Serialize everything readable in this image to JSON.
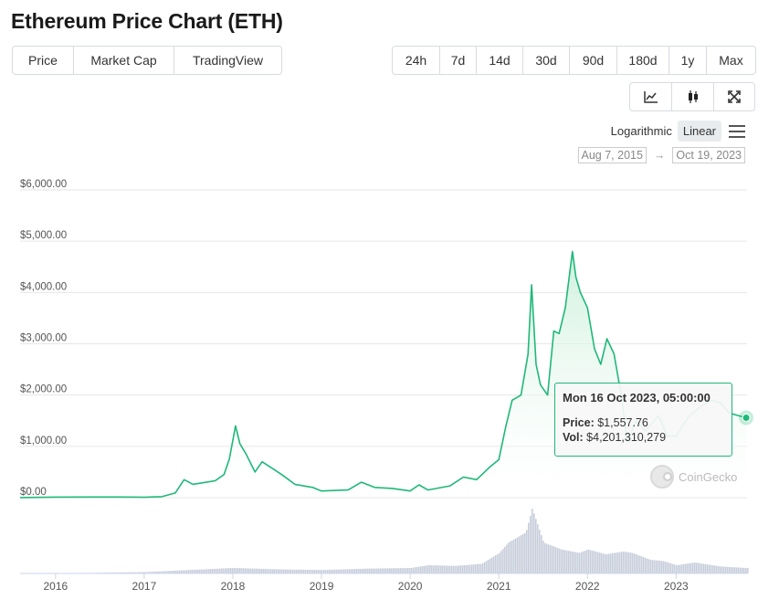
{
  "page": {
    "title": "Ethereum Price Chart (ETH)"
  },
  "view_tabs": [
    {
      "label": "Price",
      "active": true
    },
    {
      "label": "Market Cap",
      "active": false
    },
    {
      "label": "TradingView",
      "active": false
    }
  ],
  "range_tabs": [
    {
      "label": "24h",
      "active": false
    },
    {
      "label": "7d",
      "active": false
    },
    {
      "label": "14d",
      "active": false
    },
    {
      "label": "30d",
      "active": false
    },
    {
      "label": "90d",
      "active": false
    },
    {
      "label": "180d",
      "active": false
    },
    {
      "label": "1y",
      "active": false
    },
    {
      "label": "Max",
      "active": true
    }
  ],
  "chart_types": [
    {
      "icon": "line-chart-icon",
      "active": true
    },
    {
      "icon": "candlestick-icon",
      "active": false
    },
    {
      "icon": "expand-icon",
      "active": false
    }
  ],
  "scale": {
    "logarithmic_label": "Logarithmic",
    "linear_label": "Linear",
    "active": "Linear"
  },
  "date_range": {
    "from": "Aug 7, 2015",
    "to": "Oct 19, 2023",
    "arrow": "→"
  },
  "tooltip": {
    "date": "Mon 16 Oct 2023, 05:00:00",
    "price_label": "Price:",
    "price_value": "$1,557.76",
    "vol_label": "Vol:",
    "vol_value": "$4,201,310,279"
  },
  "watermark": {
    "text": "CoinGecko"
  },
  "colors": {
    "line": "#1fb879",
    "area_top": "#c9efd9",
    "volume": "#c7cedb",
    "grid": "#e6e6e6",
    "axis_text": "#555555"
  },
  "chart_data": {
    "type": "area",
    "title": "",
    "xlabel": "",
    "ylabel": "",
    "ylim": [
      0,
      6000
    ],
    "xlim": [
      2015.6,
      2023.8
    ],
    "y_ticks": [
      0,
      1000,
      2000,
      3000,
      4000,
      5000,
      6000
    ],
    "y_tick_labels": [
      "$0.00",
      "$1,000.00",
      "$2,000.00",
      "$3,000.00",
      "$4,000.00",
      "$5,000.00",
      "$6,000.00"
    ],
    "x_ticks": [
      2016,
      2017,
      2018,
      2019,
      2020,
      2021,
      2022,
      2023
    ],
    "x_tick_labels": [
      "2016",
      "2017",
      "2018",
      "2019",
      "2020",
      "2021",
      "2022",
      "2023"
    ],
    "grid": true,
    "series": [
      {
        "name": "Price",
        "x": [
          2015.6,
          2016.0,
          2016.5,
          2016.9,
          2017.0,
          2017.2,
          2017.35,
          2017.45,
          2017.55,
          2017.7,
          2017.8,
          2017.9,
          2017.96,
          2018.03,
          2018.08,
          2018.15,
          2018.25,
          2018.33,
          2018.42,
          2018.55,
          2018.7,
          2018.9,
          2019.0,
          2019.3,
          2019.45,
          2019.6,
          2019.8,
          2020.0,
          2020.1,
          2020.2,
          2020.45,
          2020.6,
          2020.75,
          2020.9,
          2021.0,
          2021.08,
          2021.15,
          2021.25,
          2021.33,
          2021.37,
          2021.42,
          2021.47,
          2021.55,
          2021.62,
          2021.68,
          2021.75,
          2021.83,
          2021.87,
          2021.92,
          2022.0,
          2022.08,
          2022.15,
          2022.22,
          2022.3,
          2022.38,
          2022.45,
          2022.55,
          2022.65,
          2022.8,
          2022.9,
          2023.0,
          2023.15,
          2023.3,
          2023.4,
          2023.5,
          2023.6,
          2023.7,
          2023.79
        ],
        "values": [
          1,
          10,
          12,
          10,
          8,
          20,
          90,
          350,
          260,
          300,
          330,
          450,
          750,
          1400,
          1050,
          850,
          500,
          700,
          600,
          450,
          260,
          200,
          130,
          150,
          300,
          200,
          180,
          130,
          250,
          150,
          230,
          400,
          350,
          600,
          740,
          1400,
          1900,
          2000,
          2800,
          4150,
          2600,
          2200,
          2000,
          3250,
          3200,
          3700,
          4800,
          4300,
          4000,
          3700,
          2900,
          2600,
          3100,
          2800,
          2000,
          1100,
          1500,
          1300,
          1600,
          1200,
          1200,
          1600,
          1800,
          1900,
          1850,
          1650,
          1600,
          1557.76
        ]
      },
      {
        "name": "Vol",
        "x": [
          2015.6,
          2016.5,
          2017.0,
          2017.5,
          2018.0,
          2018.5,
          2019.0,
          2019.5,
          2020.0,
          2020.2,
          2020.5,
          2020.8,
          2021.0,
          2021.1,
          2021.3,
          2021.37,
          2021.5,
          2021.7,
          2021.9,
          2022.0,
          2022.2,
          2022.4,
          2022.5,
          2022.7,
          2022.85,
          2023.0,
          2023.2,
          2023.5,
          2023.79
        ],
        "values": [
          0.0,
          0.01,
          0.02,
          0.05,
          0.08,
          0.06,
          0.05,
          0.07,
          0.08,
          0.12,
          0.11,
          0.14,
          0.3,
          0.45,
          0.6,
          0.95,
          0.45,
          0.35,
          0.3,
          0.35,
          0.28,
          0.32,
          0.3,
          0.2,
          0.18,
          0.12,
          0.16,
          0.1,
          0.08
        ]
      }
    ]
  }
}
